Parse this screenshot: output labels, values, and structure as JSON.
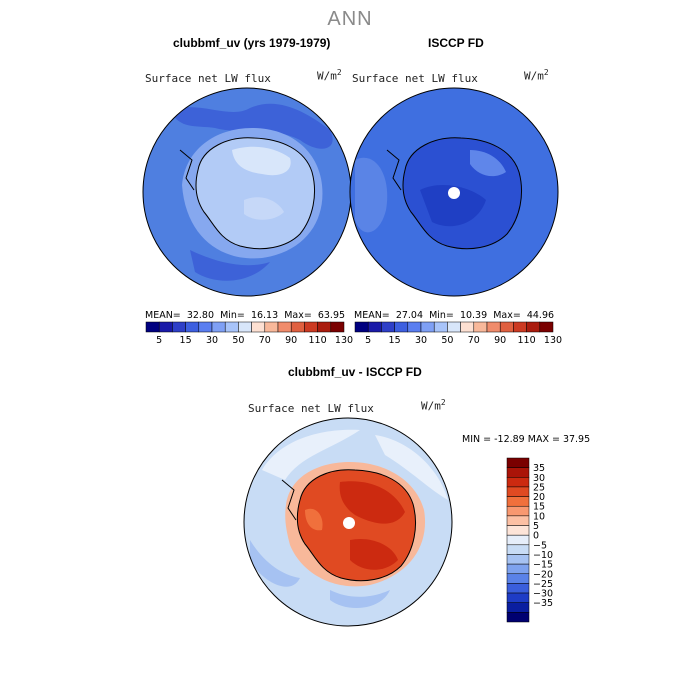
{
  "page_title": "ANN",
  "colors": {
    "continent_outline": "#000000",
    "pole_hole": "#ffffff",
    "ocean_model": "#4f7fe0",
    "ocean_obs": "#3f6fe0",
    "diff_ocean": "#c8dcf5",
    "diff_land": "#e0502a"
  },
  "panels": [
    {
      "id": "model",
      "title": "clubbmf_uv (yrs 1979-1979)",
      "variable": "Surface net LW flux",
      "units_base": "W/m",
      "units_exp": "2",
      "stats": {
        "mean_label": "MEAN=",
        "mean": "32.80",
        "min_label": "Min=",
        "min": "16.13",
        "max_label": "Max=",
        "max": "63.95"
      }
    },
    {
      "id": "obs",
      "title": "ISCCP FD",
      "variable": "Surface net LW flux",
      "units_base": "W/m",
      "units_exp": "2",
      "stats": {
        "mean_label": "MEAN=",
        "mean": "27.04",
        "min_label": "Min=",
        "min": "10.39",
        "max_label": "Max=",
        "max": "44.96"
      }
    },
    {
      "id": "diff",
      "title": "clubbmf_uv - ISCCP FD",
      "variable": "Surface net LW flux",
      "units_base": "W/m",
      "units_exp": "2",
      "stats_text": "MIN = -12.89 MAX = 37.95"
    }
  ],
  "chart_data": [
    {
      "type": "heatmap",
      "title": "clubbmf_uv (yrs 1979-1979)",
      "subtitle": "Surface net LW flux",
      "units": "W/m2",
      "projection": "south-polar-stereographic",
      "mean": 32.8,
      "min": 16.13,
      "max": 63.95,
      "colorbar": {
        "orientation": "horizontal",
        "levels": [
          5,
          10,
          15,
          20,
          30,
          40,
          50,
          60,
          70,
          80,
          90,
          100,
          110,
          120,
          130
        ],
        "tick_labels": [
          "5",
          "15",
          "30",
          "50",
          "70",
          "90",
          "110",
          "130"
        ],
        "colors": [
          "#000080",
          "#1a1aa8",
          "#2e3fc8",
          "#3d5fe0",
          "#5a7ef0",
          "#7fa0f5",
          "#a8c4fa",
          "#d8e6fa",
          "#fde0d2",
          "#f8b89a",
          "#f08c6c",
          "#e06040",
          "#cc3a22",
          "#aa1c0e",
          "#7a0000"
        ]
      }
    },
    {
      "type": "heatmap",
      "title": "ISCCP FD",
      "subtitle": "Surface net LW flux",
      "units": "W/m2",
      "projection": "south-polar-stereographic",
      "mean": 27.04,
      "min": 10.39,
      "max": 44.96,
      "colorbar": {
        "orientation": "horizontal",
        "levels": [
          5,
          10,
          15,
          20,
          30,
          40,
          50,
          60,
          70,
          80,
          90,
          100,
          110,
          120,
          130
        ],
        "tick_labels": [
          "5",
          "15",
          "30",
          "50",
          "70",
          "90",
          "110",
          "130"
        ],
        "colors": [
          "#000080",
          "#1a1aa8",
          "#2e3fc8",
          "#3d5fe0",
          "#5a7ef0",
          "#7fa0f5",
          "#a8c4fa",
          "#d8e6fa",
          "#fde0d2",
          "#f8b89a",
          "#f08c6c",
          "#e06040",
          "#cc3a22",
          "#aa1c0e",
          "#7a0000"
        ]
      }
    },
    {
      "type": "heatmap",
      "title": "clubbmf_uv - ISCCP FD",
      "subtitle": "Surface net LW flux",
      "units": "W/m2",
      "projection": "south-polar-stereographic",
      "min": -12.89,
      "max": 37.95,
      "colorbar": {
        "orientation": "vertical",
        "tick_labels": [
          "35",
          "30",
          "25",
          "20",
          "15",
          "10",
          "5",
          "0",
          "-5",
          "-10",
          "-15",
          "-20",
          "-25",
          "-30",
          "-35"
        ],
        "colors": [
          "#7a0000",
          "#aa1408",
          "#cc2a10",
          "#e04a22",
          "#f0703c",
          "#f89870",
          "#fcc0a4",
          "#fde4d8",
          "#e6eefa",
          "#c8dcf5",
          "#a6c2f2",
          "#7ea2ee",
          "#5a82e8",
          "#3a5edc",
          "#1e3cc6",
          "#0a1ea0",
          "#000070"
        ]
      }
    }
  ]
}
